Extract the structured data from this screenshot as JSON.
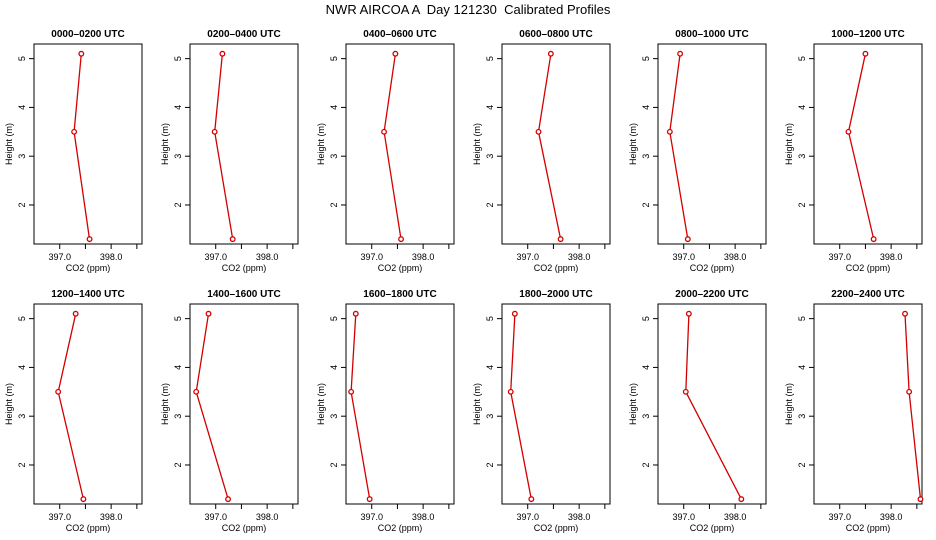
{
  "title": "NWR AIRCOA A  Day 121230  Calibrated Profiles",
  "colors": {
    "line": "#d40000",
    "marker": "#d40000",
    "axis": "#000000"
  },
  "chart_data": {
    "type": "line",
    "layout": "2 rows x 6 columns of small multiples",
    "xlabel": "CO2 (ppm)",
    "ylabel": "Height (m)",
    "xlim": [
      396.5,
      398.6
    ],
    "ylim": [
      1.2,
      5.3
    ],
    "xticks": [
      397.0,
      397.5,
      398.0,
      398.5
    ],
    "xtick_labels": [
      "397.0",
      "",
      "398.0",
      ""
    ],
    "yticks": [
      2,
      3,
      4,
      5
    ],
    "ytick_labels": [
      "2",
      "3",
      "4",
      "5"
    ],
    "panels": [
      {
        "title": "0000–0200 UTC",
        "points": [
          {
            "co2": 397.42,
            "height": 5.1
          },
          {
            "co2": 397.28,
            "height": 3.5
          },
          {
            "co2": 397.58,
            "height": 1.3
          }
        ]
      },
      {
        "title": "0200–0400 UTC",
        "points": [
          {
            "co2": 397.13,
            "height": 5.1
          },
          {
            "co2": 396.98,
            "height": 3.5
          },
          {
            "co2": 397.33,
            "height": 1.3
          }
        ]
      },
      {
        "title": "0400–0600 UTC",
        "points": [
          {
            "co2": 397.46,
            "height": 5.1
          },
          {
            "co2": 397.24,
            "height": 3.5
          },
          {
            "co2": 397.57,
            "height": 1.3
          }
        ]
      },
      {
        "title": "0600–0800 UTC",
        "points": [
          {
            "co2": 397.45,
            "height": 5.1
          },
          {
            "co2": 397.21,
            "height": 3.5
          },
          {
            "co2": 397.64,
            "height": 1.3
          }
        ]
      },
      {
        "title": "0800–1000 UTC",
        "points": [
          {
            "co2": 396.93,
            "height": 5.1
          },
          {
            "co2": 396.73,
            "height": 3.5
          },
          {
            "co2": 397.08,
            "height": 1.3
          }
        ]
      },
      {
        "title": "1000–1200 UTC",
        "points": [
          {
            "co2": 397.5,
            "height": 5.1
          },
          {
            "co2": 397.17,
            "height": 3.5
          },
          {
            "co2": 397.66,
            "height": 1.3
          }
        ]
      },
      {
        "title": "1200–1400 UTC",
        "points": [
          {
            "co2": 397.31,
            "height": 5.1
          },
          {
            "co2": 396.97,
            "height": 3.5
          },
          {
            "co2": 397.46,
            "height": 1.3
          }
        ]
      },
      {
        "title": "1400–1600 UTC",
        "points": [
          {
            "co2": 396.86,
            "height": 5.1
          },
          {
            "co2": 396.62,
            "height": 3.5
          },
          {
            "co2": 397.24,
            "height": 1.3
          }
        ]
      },
      {
        "title": "1600–1800 UTC",
        "points": [
          {
            "co2": 396.69,
            "height": 5.1
          },
          {
            "co2": 396.6,
            "height": 3.5
          },
          {
            "co2": 396.96,
            "height": 1.3
          }
        ]
      },
      {
        "title": "1800–2000 UTC",
        "points": [
          {
            "co2": 396.75,
            "height": 5.1
          },
          {
            "co2": 396.67,
            "height": 3.5
          },
          {
            "co2": 397.07,
            "height": 1.3
          }
        ]
      },
      {
        "title": "2000–2200 UTC",
        "points": [
          {
            "co2": 397.1,
            "height": 5.1
          },
          {
            "co2": 397.04,
            "height": 3.5
          },
          {
            "co2": 398.12,
            "height": 1.3
          }
        ]
      },
      {
        "title": "2200–2400 UTC",
        "points": [
          {
            "co2": 398.27,
            "height": 5.1
          },
          {
            "co2": 398.35,
            "height": 3.5
          },
          {
            "co2": 398.57,
            "height": 1.3
          }
        ]
      }
    ]
  }
}
